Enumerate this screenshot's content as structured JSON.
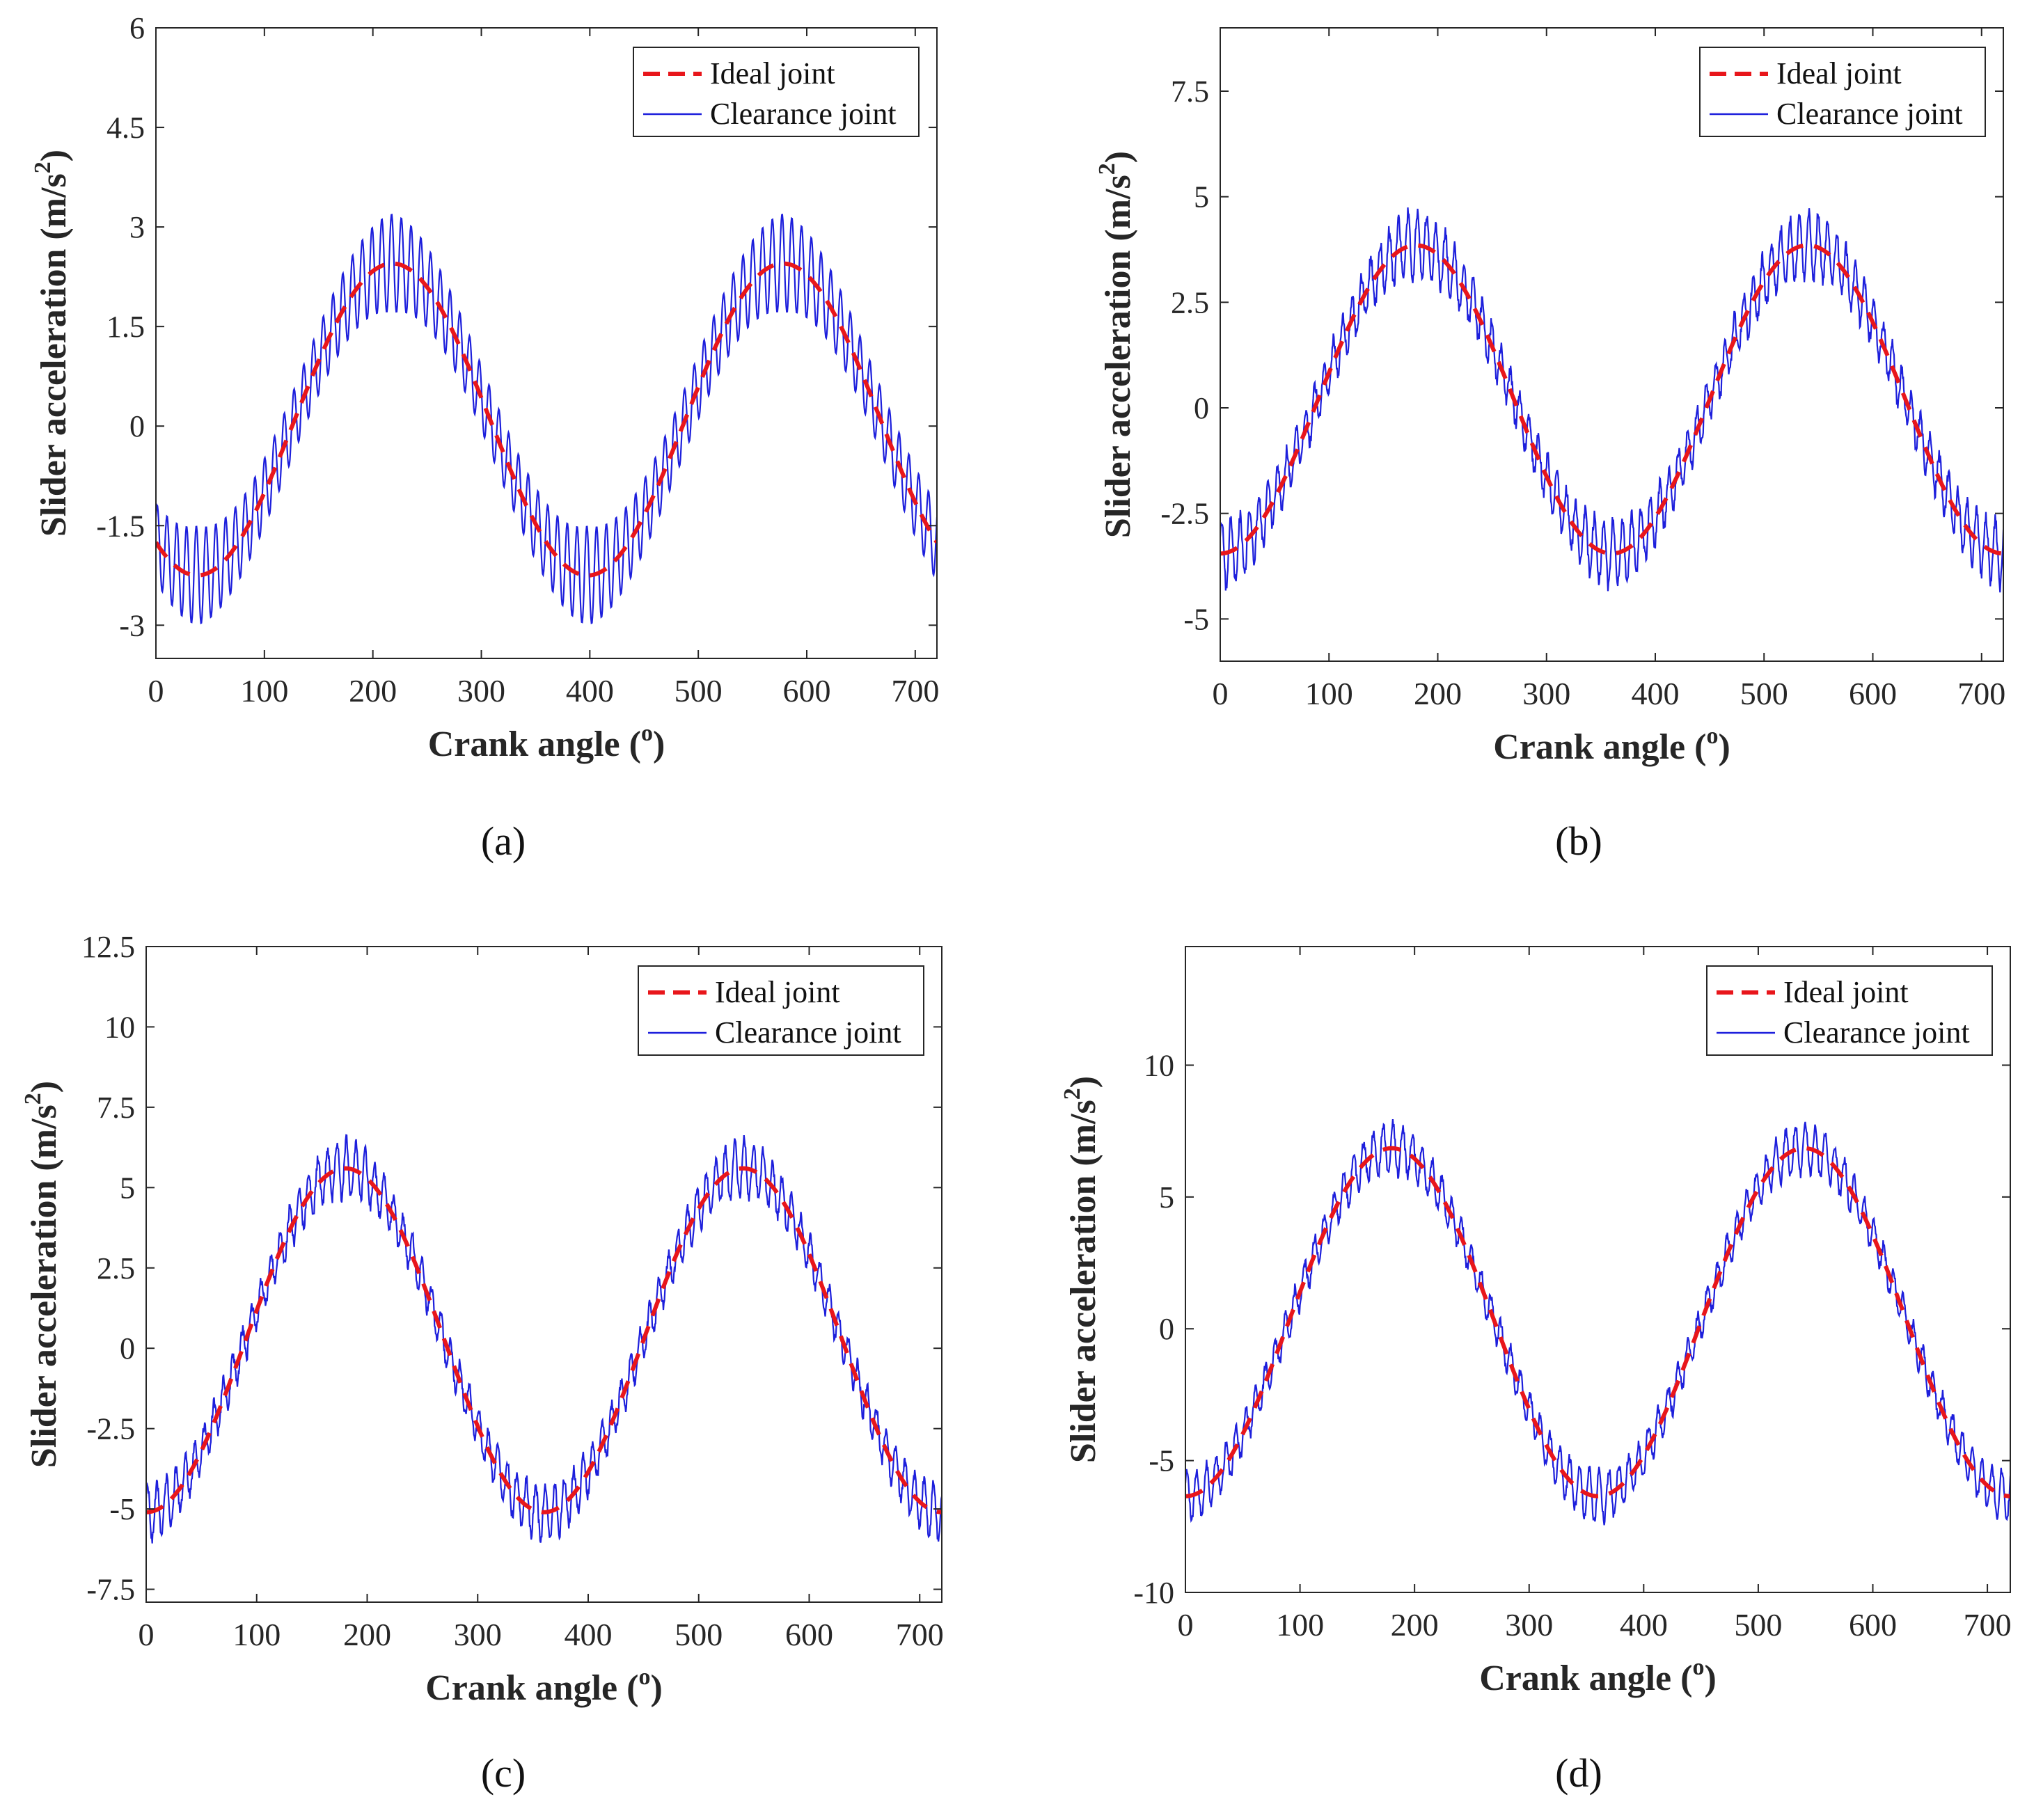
{
  "figure": {
    "panels": [
      {
        "caption": "(a)",
        "chart_data": {
          "type": "line",
          "xlabel": "Crank angle",
          "xlabel_sup": "o",
          "ylabel": "Slider acceleration (m/s",
          "ylabel_sup": "2",
          "xlim": [
            0,
            720
          ],
          "ylim": [
            -3.5,
            6
          ],
          "xticks": [
            0,
            100,
            200,
            300,
            400,
            500,
            600,
            700
          ],
          "yticks": [
            -3,
            -1.5,
            0,
            1.5,
            3,
            4.5,
            6
          ],
          "ytick_labels": [
            "-3",
            "-1.5",
            "0",
            "1.5",
            "3",
            "4.5",
            "6"
          ],
          "legend_position": "top-right",
          "series": [
            {
              "name": "Ideal joint",
              "style": "dashed",
              "color": "#e8161b",
              "mean": 0.1,
              "amplitude": 2.35,
              "peaks_at_deg": [
                218,
                578
              ]
            },
            {
              "name": "Clearance joint",
              "style": "solid",
              "color": "#1d1fdc",
              "oscillation_amplitude": 0.75,
              "oscillations_per_cycle": 40
            }
          ]
        }
      },
      {
        "caption": "(b)",
        "chart_data": {
          "type": "line",
          "xlabel": "Crank angle",
          "xlabel_sup": "o",
          "ylabel": "Slider acceleration (m/s",
          "ylabel_sup": "2",
          "xlim": [
            0,
            720
          ],
          "ylim": [
            -6,
            9
          ],
          "xticks": [
            0,
            100,
            200,
            300,
            400,
            500,
            600,
            700
          ],
          "yticks": [
            -5,
            -2.5,
            0,
            2.5,
            5,
            7.5
          ],
          "ytick_labels": [
            "-5",
            "-2.5",
            "0",
            "2.5",
            "5",
            "7.5"
          ],
          "legend_position": "top-right",
          "series": [
            {
              "name": "Ideal joint",
              "style": "dashed",
              "color": "#e8161b",
              "mean": 0.2,
              "amplitude": 3.65,
              "peaks_at_deg": [
                180,
                540
              ]
            },
            {
              "name": "Clearance joint",
              "style": "solid",
              "color": "#1d1fdc",
              "oscillation_amplitude": 0.9,
              "oscillations_per_cycle": 42
            }
          ]
        }
      },
      {
        "caption": "(c)",
        "chart_data": {
          "type": "line",
          "xlabel": "Crank angle",
          "xlabel_sup": "o",
          "ylabel": "Slider acceleration (m/s",
          "ylabel_sup": "2",
          "xlim": [
            0,
            720
          ],
          "ylim": [
            -7.9,
            12.5
          ],
          "xticks": [
            0,
            100,
            200,
            300,
            400,
            500,
            600,
            700
          ],
          "yticks": [
            -7.5,
            -5,
            -2.5,
            0,
            2.5,
            5,
            7.5,
            10,
            12.5
          ],
          "ytick_labels": [
            "-7.5",
            "-5",
            "-2.5",
            "0",
            "2.5",
            "5",
            "7.5",
            "10",
            "12.5"
          ],
          "legend_position": "top-right",
          "series": [
            {
              "name": "Ideal joint",
              "style": "dashed",
              "color": "#e8161b",
              "mean": 0.25,
              "amplitude": 5.35,
              "peaks_at_deg": [
                180,
                540
              ]
            },
            {
              "name": "Clearance joint",
              "style": "solid",
              "color": "#1d1fdc",
              "oscillation_amplitude": 1.0,
              "oscillations_per_cycle": 42
            }
          ]
        }
      },
      {
        "caption": "(d)",
        "chart_data": {
          "type": "line",
          "xlabel": "Crank angle",
          "xlabel_sup": "o",
          "ylabel": "Slider acceleration (m/s",
          "ylabel_sup": "2",
          "xlim": [
            0,
            720
          ],
          "ylim": [
            -10,
            14.5
          ],
          "xticks": [
            0,
            100,
            200,
            300,
            400,
            500,
            600,
            700
          ],
          "yticks": [
            -10,
            -5,
            0,
            5,
            10
          ],
          "ytick_labels": [
            "-10",
            "-5",
            "0",
            "5",
            "10"
          ],
          "legend_position": "top-right",
          "series": [
            {
              "name": "Ideal joint",
              "style": "dashed",
              "color": "#e8161b",
              "mean": 0.25,
              "amplitude": 6.6,
              "peaks_at_deg": [
                180,
                540
              ]
            },
            {
              "name": "Clearance joint",
              "style": "solid",
              "color": "#1d1fdc",
              "oscillation_amplitude": 1.1,
              "oscillations_per_cycle": 42
            }
          ]
        }
      }
    ]
  }
}
